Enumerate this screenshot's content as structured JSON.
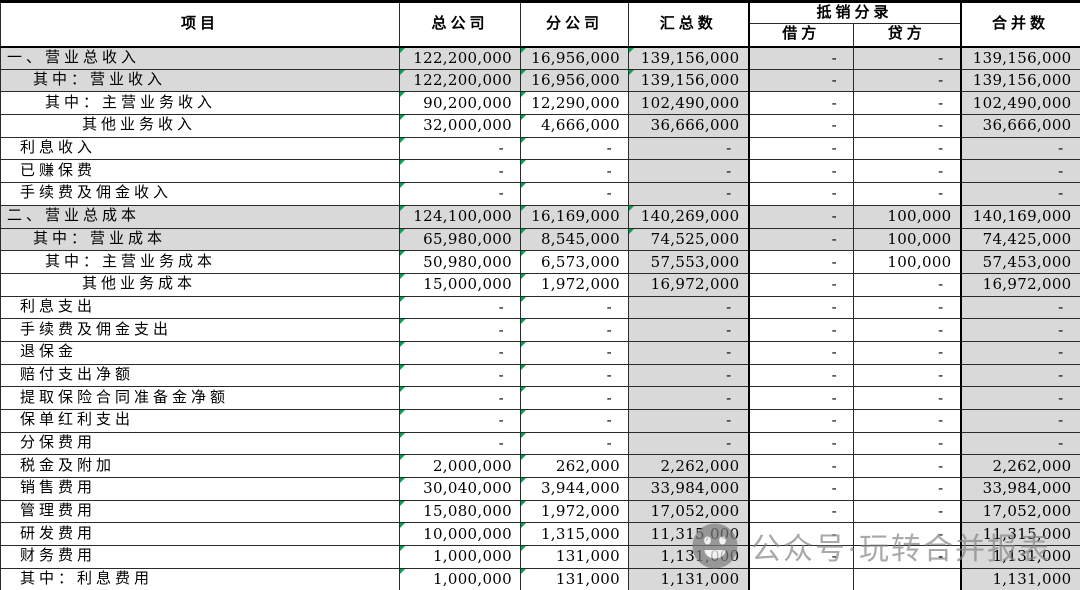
{
  "table": {
    "header": {
      "item": "项目",
      "head_office": "总公司",
      "branch": "分公司",
      "summary": "汇总数",
      "elimination_group": "抵销分录",
      "debit": "借方",
      "credit": "贷方",
      "consolidated": "合并数"
    },
    "rows": [
      {
        "label": "一、营业总收入",
        "indent": 0,
        "gray": true,
        "greens": [
          0,
          1,
          2
        ],
        "values": [
          "122,200,000",
          "16,956,000",
          "139,156,000",
          "-",
          "-",
          "139,156,000"
        ]
      },
      {
        "label": "其中：营业收入",
        "indent": 2,
        "gray": true,
        "greens": [
          0,
          1,
          2
        ],
        "values": [
          "122,200,000",
          "16,956,000",
          "139,156,000",
          "-",
          "-",
          "139,156,000"
        ]
      },
      {
        "label": "其中：主营业务收入",
        "indent": 3,
        "gray": false,
        "greens": [
          0,
          1
        ],
        "values": [
          "90,200,000",
          "12,290,000",
          "102,490,000",
          "-",
          "-",
          "102,490,000"
        ]
      },
      {
        "label": "其他业务收入",
        "indent": 4,
        "gray": false,
        "greens": [
          0,
          1
        ],
        "values": [
          "32,000,000",
          "4,666,000",
          "36,666,000",
          "-",
          "-",
          "36,666,000"
        ]
      },
      {
        "label": "利息收入",
        "indent": 1,
        "gray": false,
        "greens": [
          0,
          1
        ],
        "values": [
          "-",
          "-",
          "-",
          "-",
          "-",
          "-"
        ]
      },
      {
        "label": "已赚保费",
        "indent": 1,
        "gray": false,
        "greens": [
          0,
          1
        ],
        "values": [
          "-",
          "-",
          "-",
          "-",
          "-",
          "-"
        ]
      },
      {
        "label": "手续费及佣金收入",
        "indent": 1,
        "gray": false,
        "greens": [
          0,
          1
        ],
        "values": [
          "-",
          "-",
          "-",
          "-",
          "-",
          "-"
        ]
      },
      {
        "label": "二、营业总成本",
        "indent": 0,
        "gray": true,
        "greens": [
          0,
          1,
          2
        ],
        "values": [
          "124,100,000",
          "16,169,000",
          "140,269,000",
          "-",
          "100,000",
          "140,169,000"
        ]
      },
      {
        "label": "其中：营业成本",
        "indent": 2,
        "gray": true,
        "greens": [
          0,
          1,
          2
        ],
        "values": [
          "65,980,000",
          "8,545,000",
          "74,525,000",
          "-",
          "100,000",
          "74,425,000"
        ]
      },
      {
        "label": "其中：主营业务成本",
        "indent": 3,
        "gray": false,
        "greens": [
          0,
          1
        ],
        "values": [
          "50,980,000",
          "6,573,000",
          "57,553,000",
          "-",
          "100,000",
          "57,453,000"
        ]
      },
      {
        "label": "其他业务成本",
        "indent": 4,
        "gray": false,
        "greens": [
          0,
          1
        ],
        "values": [
          "15,000,000",
          "1,972,000",
          "16,972,000",
          "-",
          "-",
          "16,972,000"
        ]
      },
      {
        "label": "利息支出",
        "indent": 1,
        "gray": false,
        "greens": [
          0,
          1
        ],
        "values": [
          "-",
          "-",
          "-",
          "-",
          "-",
          "-"
        ]
      },
      {
        "label": "手续费及佣金支出",
        "indent": 1,
        "gray": false,
        "greens": [
          0,
          1
        ],
        "values": [
          "-",
          "-",
          "-",
          "-",
          "-",
          "-"
        ]
      },
      {
        "label": "退保金",
        "indent": 1,
        "gray": false,
        "greens": [
          0,
          1
        ],
        "values": [
          "-",
          "-",
          "-",
          "-",
          "-",
          "-"
        ]
      },
      {
        "label": "赔付支出净额",
        "indent": 1,
        "gray": false,
        "greens": [
          0,
          1
        ],
        "values": [
          "-",
          "-",
          "-",
          "-",
          "-",
          "-"
        ]
      },
      {
        "label": "提取保险合同准备金净额",
        "indent": 1,
        "gray": false,
        "greens": [
          0,
          1
        ],
        "values": [
          "-",
          "-",
          "-",
          "-",
          "-",
          "-"
        ]
      },
      {
        "label": "保单红利支出",
        "indent": 1,
        "gray": false,
        "greens": [
          0,
          1
        ],
        "values": [
          "-",
          "-",
          "-",
          "-",
          "-",
          "-"
        ]
      },
      {
        "label": "分保费用",
        "indent": 1,
        "gray": false,
        "greens": [
          0,
          1
        ],
        "values": [
          "-",
          "-",
          "-",
          "-",
          "-",
          "-"
        ]
      },
      {
        "label": "税金及附加",
        "indent": 1,
        "gray": false,
        "greens": [
          0,
          1
        ],
        "values": [
          "2,000,000",
          "262,000",
          "2,262,000",
          "-",
          "-",
          "2,262,000"
        ]
      },
      {
        "label": "销售费用",
        "indent": 1,
        "gray": false,
        "greens": [
          0,
          1
        ],
        "values": [
          "30,040,000",
          "3,944,000",
          "33,984,000",
          "-",
          "-",
          "33,984,000"
        ]
      },
      {
        "label": "管理费用",
        "indent": 1,
        "gray": false,
        "greens": [
          0,
          1
        ],
        "values": [
          "15,080,000",
          "1,972,000",
          "17,052,000",
          "-",
          "-",
          "17,052,000"
        ]
      },
      {
        "label": "研发费用",
        "indent": 1,
        "gray": false,
        "greens": [
          0,
          1
        ],
        "values": [
          "10,000,000",
          "1,315,000",
          "11,315,000",
          "-",
          "-",
          "11,315,000"
        ]
      },
      {
        "label": "财务费用",
        "indent": 1,
        "gray": false,
        "greens": [
          0,
          1
        ],
        "values": [
          "1,000,000",
          "131,000",
          "1,131,000",
          "-",
          "-",
          "1,131,000"
        ]
      },
      {
        "label": "其中：利息费用",
        "indent": 1,
        "gray": false,
        "greens": [
          0,
          1
        ],
        "values": [
          "1,000,000",
          "131,000",
          "1,131,000",
          "",
          "",
          "1,131,000"
        ]
      }
    ]
  },
  "watermark": {
    "text": "公众号·玩转合并报表",
    "icon": "wechat-smiley-icon"
  },
  "colors": {
    "row_shade": "#d9d9d9",
    "green_marker": "#00a550",
    "watermark_gray": "#868686",
    "border": "#2a2a2a"
  }
}
